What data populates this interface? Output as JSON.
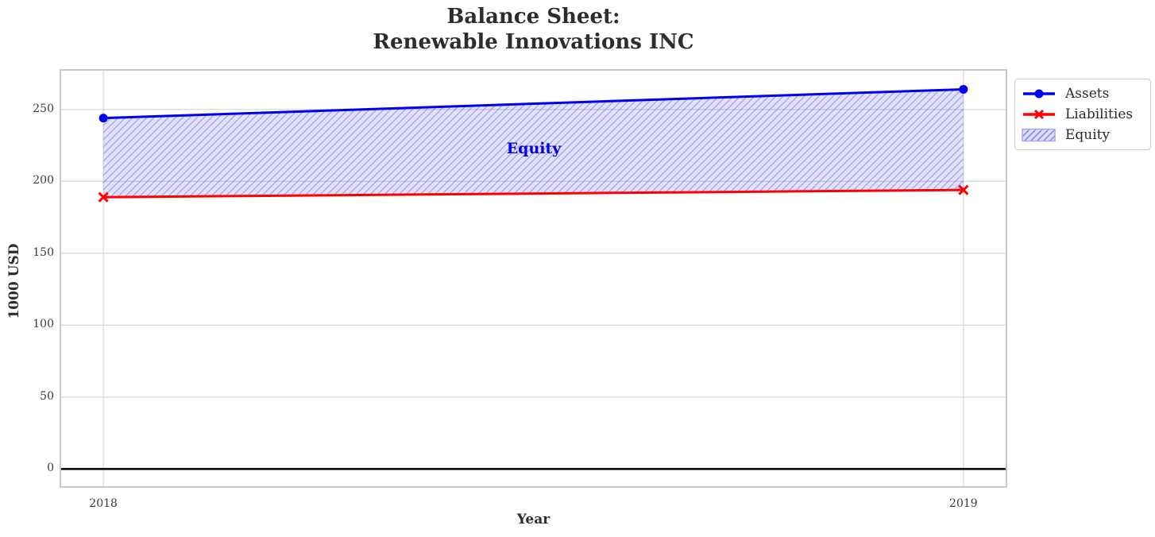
{
  "figure": {
    "title_lines": [
      "Balance Sheet:",
      "Renewable Innovations INC"
    ],
    "xlabel": "Year",
    "ylabel": "1000 USD"
  },
  "legend": {
    "items": [
      {
        "label": "Assets",
        "glyph": "line-circle-sample",
        "color": "#0000f0"
      },
      {
        "label": "Liabilities",
        "glyph": "line-x-sample",
        "color": "#ff0000"
      },
      {
        "label": "Equity",
        "glyph": "hatched-patch-sample",
        "color": "#b9b4ee"
      }
    ]
  },
  "chart_data": {
    "type": "line",
    "title": "Balance Sheet: Renewable Innovations INC",
    "xlabel": "Year",
    "ylabel": "1000 USD",
    "x": [
      2018,
      2019
    ],
    "x_tick_labels": [
      "2018",
      "2019"
    ],
    "series": [
      {
        "name": "Assets",
        "marker": "circle",
        "color": "#0000f0",
        "values": [
          244,
          264
        ]
      },
      {
        "name": "Liabilities",
        "marker": "x",
        "color": "#ff0000",
        "values": [
          189,
          194
        ]
      }
    ],
    "area": {
      "label": "Equity",
      "between": [
        "Liabilities",
        "Assets"
      ],
      "values": [
        55,
        70
      ],
      "fill": "rgba(62,62,235,0.15)",
      "hatch_color": "rgba(95,95,225,0.45)",
      "hatch": "///",
      "label_xy": [
        672,
        187
      ]
    },
    "yticks": [
      0,
      50,
      100,
      150,
      200,
      250
    ],
    "ylim": [
      -12.5,
      277.5
    ],
    "xlim": [
      2017.95,
      2019.05
    ],
    "axhline": 0,
    "grid": true,
    "grid_color": "#d9d9d9",
    "border_color": "#c9c9c9",
    "legend_position": "outside upper right"
  }
}
